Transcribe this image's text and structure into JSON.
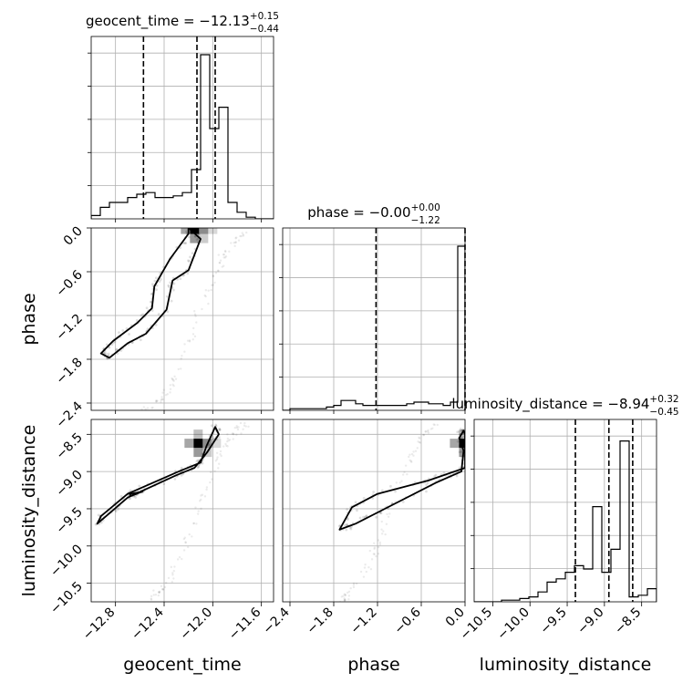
{
  "chart_data": {
    "type": "corner",
    "grid": true,
    "parameters": [
      {
        "name": "geocent_time",
        "axis_label": "geocent_time",
        "title_main": "geocent_time = −12.13",
        "title_sup": "+0.15",
        "title_sub": "−0.44",
        "range": [
          -13.0,
          -11.5
        ],
        "ticks": [
          -12.8,
          -12.4,
          -12.0,
          -11.6
        ],
        "tick_labels": [
          "−12.8",
          "−12.4",
          "−12.0",
          "−11.6"
        ],
        "quantiles": [
          -12.57,
          -12.13,
          -11.98
        ],
        "histogram": [
          0.02,
          0.07,
          0.1,
          0.1,
          0.13,
          0.15,
          0.16,
          0.13,
          0.13,
          0.14,
          0.16,
          0.3,
          1.0,
          0.55,
          0.68,
          0.1,
          0.04,
          0.01,
          0.0,
          0.0
        ]
      },
      {
        "name": "phase",
        "axis_label": "phase",
        "title_main": "phase = −0.00",
        "title_sup": "+0.00",
        "title_sub": "−1.22",
        "range": [
          -2.5,
          0.0
        ],
        "ticks": [
          -2.4,
          -1.8,
          -1.2,
          -0.6,
          0.0
        ],
        "tick_labels": [
          "−2.4",
          "−1.8",
          "−1.2",
          "−0.6",
          "0.0"
        ],
        "quantiles": [
          -1.22,
          -0.0
        ],
        "histogram": [
          0.0,
          0.01,
          0.01,
          0.01,
          0.01,
          0.01,
          0.02,
          0.03,
          0.06,
          0.06,
          0.04,
          0.03,
          0.03,
          0.03,
          0.03,
          0.03,
          0.03,
          0.04,
          0.05,
          0.05,
          0.04,
          0.04,
          0.03,
          0.05,
          1.0
        ]
      },
      {
        "name": "luminosity_distance",
        "axis_label": "luminosity_distance",
        "title_main": "luminosity_distance = −8.94",
        "title_sup": "+0.32",
        "title_sub": "−0.45",
        "range": [
          -10.75,
          -8.3
        ],
        "ticks": [
          -10.5,
          -10.0,
          -9.5,
          -9.0,
          -8.5
        ],
        "tick_labels": [
          "−10.5",
          "−10.0",
          "−9.5",
          "−9.0",
          "−8.5"
        ],
        "quantiles": [
          -9.39,
          -8.94,
          -8.62
        ],
        "histogram": [
          0.0,
          0.0,
          0.0,
          0.01,
          0.01,
          0.02,
          0.03,
          0.06,
          0.12,
          0.14,
          0.18,
          0.22,
          0.2,
          0.58,
          0.18,
          0.32,
          0.98,
          0.03,
          0.04,
          0.08
        ]
      }
    ],
    "contours": {
      "phase_vs_geocent_time": [
        [
          [
            -12.85,
            -1.78
          ],
          [
            -12.7,
            -1.58
          ],
          [
            -12.55,
            -1.45
          ],
          [
            -12.38,
            -1.12
          ],
          [
            -12.33,
            -0.72
          ],
          [
            -12.2,
            -0.58
          ],
          [
            -12.1,
            -0.15
          ],
          [
            -12.2,
            0.0
          ],
          [
            -12.2,
            -0.08
          ],
          [
            -12.35,
            -0.42
          ],
          [
            -12.48,
            -0.8
          ],
          [
            -12.5,
            -1.1
          ],
          [
            -12.62,
            -1.3
          ],
          [
            -12.82,
            -1.55
          ],
          [
            -12.92,
            -1.72
          ],
          [
            -12.85,
            -1.78
          ]
        ]
      ],
      "luminosity_distance_vs_geocent_time": [
        [
          [
            -12.95,
            -9.7
          ],
          [
            -12.7,
            -9.35
          ],
          [
            -12.3,
            -9.05
          ],
          [
            -12.15,
            -8.95
          ],
          [
            -12.05,
            -8.75
          ],
          [
            -11.95,
            -8.5
          ],
          [
            -11.98,
            -8.4
          ],
          [
            -12.05,
            -8.65
          ],
          [
            -12.1,
            -8.88
          ],
          [
            -12.28,
            -9.0
          ],
          [
            -12.7,
            -9.3
          ],
          [
            -12.92,
            -9.6
          ],
          [
            -12.95,
            -9.7
          ]
        ],
        [
          [
            -12.68,
            -9.3
          ],
          [
            -12.58,
            -9.27
          ],
          [
            -12.68,
            -9.33
          ],
          [
            -12.68,
            -9.3
          ]
        ]
      ],
      "luminosity_distance_vs_phase": [
        [
          [
            -1.72,
            -9.78
          ],
          [
            -1.5,
            -9.7
          ],
          [
            -1.1,
            -9.5
          ],
          [
            -0.4,
            -9.15
          ],
          [
            -0.05,
            -9.0
          ],
          [
            -0.02,
            -8.72
          ],
          [
            -0.08,
            -8.55
          ],
          [
            -0.02,
            -8.45
          ],
          [
            0.0,
            -8.5
          ],
          [
            0.0,
            -8.95
          ],
          [
            -0.5,
            -9.12
          ],
          [
            -1.2,
            -9.3
          ],
          [
            -1.55,
            -9.48
          ],
          [
            -1.72,
            -9.78
          ]
        ]
      ]
    },
    "density_peaks": {
      "phase_vs_geocent_time": [
        -12.15,
        -0.02
      ],
      "luminosity_distance_vs_geocent_time": [
        -12.12,
        -8.62
      ],
      "luminosity_distance_vs_phase": [
        -0.02,
        -8.62
      ]
    }
  }
}
